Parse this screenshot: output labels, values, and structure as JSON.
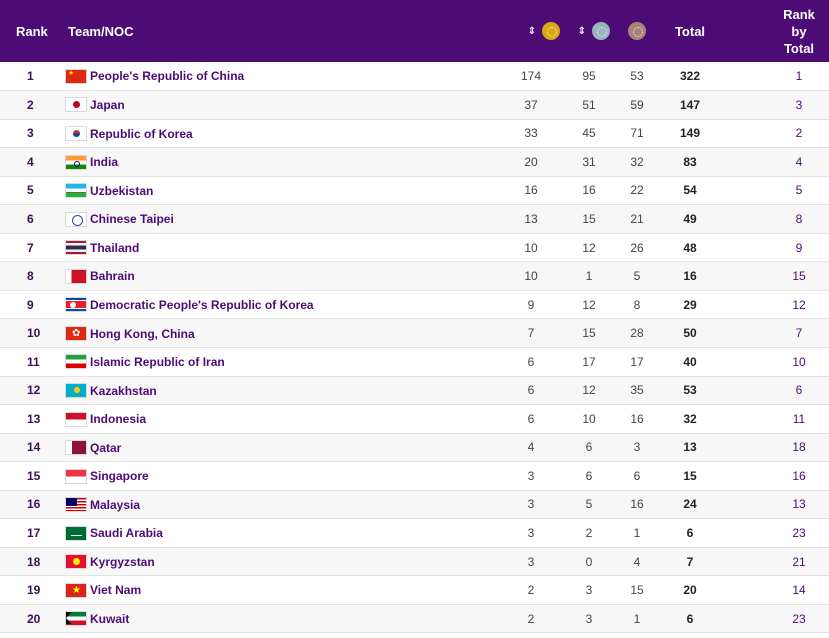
{
  "headers": {
    "rank": "Rank",
    "team": "Team/NOC",
    "total": "Total",
    "rank_by_total_1": "Rank",
    "rank_by_total_2": "by",
    "rank_by_total_3": "Total",
    "sort_glyph": "⇕"
  },
  "medal_colors": {
    "gold": "#d9a913",
    "silver": "#9ab3bd",
    "bronze": "#a88478"
  },
  "rows": [
    {
      "rank": "1",
      "team": "People's Republic of China",
      "gold": "174",
      "silver": "95",
      "bronze": "53",
      "total": "322",
      "rank_by_total": "1",
      "flag": "china"
    },
    {
      "rank": "2",
      "team": "Japan",
      "gold": "37",
      "silver": "51",
      "bronze": "59",
      "total": "147",
      "rank_by_total": "3",
      "flag": "japan"
    },
    {
      "rank": "3",
      "team": "Republic of Korea",
      "gold": "33",
      "silver": "45",
      "bronze": "71",
      "total": "149",
      "rank_by_total": "2",
      "flag": "korea"
    },
    {
      "rank": "4",
      "team": "India",
      "gold": "20",
      "silver": "31",
      "bronze": "32",
      "total": "83",
      "rank_by_total": "4",
      "flag": "india"
    },
    {
      "rank": "5",
      "team": "Uzbekistan",
      "gold": "16",
      "silver": "16",
      "bronze": "22",
      "total": "54",
      "rank_by_total": "5",
      "flag": "uzbekistan"
    },
    {
      "rank": "6",
      "team": "Chinese Taipei",
      "gold": "13",
      "silver": "15",
      "bronze": "21",
      "total": "49",
      "rank_by_total": "8",
      "flag": "taipei"
    },
    {
      "rank": "7",
      "team": "Thailand",
      "gold": "10",
      "silver": "12",
      "bronze": "26",
      "total": "48",
      "rank_by_total": "9",
      "flag": "thailand"
    },
    {
      "rank": "8",
      "team": "Bahrain",
      "gold": "10",
      "silver": "1",
      "bronze": "5",
      "total": "16",
      "rank_by_total": "15",
      "flag": "bahrain"
    },
    {
      "rank": "9",
      "team": "Democratic People's Republic of Korea",
      "gold": "9",
      "silver": "12",
      "bronze": "8",
      "total": "29",
      "rank_by_total": "12",
      "flag": "dprk"
    },
    {
      "rank": "10",
      "team": "Hong Kong, China",
      "gold": "7",
      "silver": "15",
      "bronze": "28",
      "total": "50",
      "rank_by_total": "7",
      "flag": "hongkong"
    },
    {
      "rank": "11",
      "team": "Islamic Republic of Iran",
      "gold": "6",
      "silver": "17",
      "bronze": "17",
      "total": "40",
      "rank_by_total": "10",
      "flag": "iran"
    },
    {
      "rank": "12",
      "team": "Kazakhstan",
      "gold": "6",
      "silver": "12",
      "bronze": "35",
      "total": "53",
      "rank_by_total": "6",
      "flag": "kazakhstan"
    },
    {
      "rank": "13",
      "team": "Indonesia",
      "gold": "6",
      "silver": "10",
      "bronze": "16",
      "total": "32",
      "rank_by_total": "11",
      "flag": "indonesia"
    },
    {
      "rank": "14",
      "team": "Qatar",
      "gold": "4",
      "silver": "6",
      "bronze": "3",
      "total": "13",
      "rank_by_total": "18",
      "flag": "qatar"
    },
    {
      "rank": "15",
      "team": "Singapore",
      "gold": "3",
      "silver": "6",
      "bronze": "6",
      "total": "15",
      "rank_by_total": "16",
      "flag": "singapore"
    },
    {
      "rank": "16",
      "team": "Malaysia",
      "gold": "3",
      "silver": "5",
      "bronze": "16",
      "total": "24",
      "rank_by_total": "13",
      "flag": "malaysia"
    },
    {
      "rank": "17",
      "team": "Saudi Arabia",
      "gold": "3",
      "silver": "2",
      "bronze": "1",
      "total": "6",
      "rank_by_total": "23",
      "flag": "saudi"
    },
    {
      "rank": "18",
      "team": "Kyrgyzstan",
      "gold": "3",
      "silver": "0",
      "bronze": "4",
      "total": "7",
      "rank_by_total": "21",
      "flag": "kyrgyzstan"
    },
    {
      "rank": "19",
      "team": "Viet Nam",
      "gold": "2",
      "silver": "3",
      "bronze": "15",
      "total": "20",
      "rank_by_total": "14",
      "flag": "vietnam"
    },
    {
      "rank": "20",
      "team": "Kuwait",
      "gold": "2",
      "silver": "3",
      "bronze": "1",
      "total": "6",
      "rank_by_total": "23",
      "flag": "kuwait"
    }
  ]
}
